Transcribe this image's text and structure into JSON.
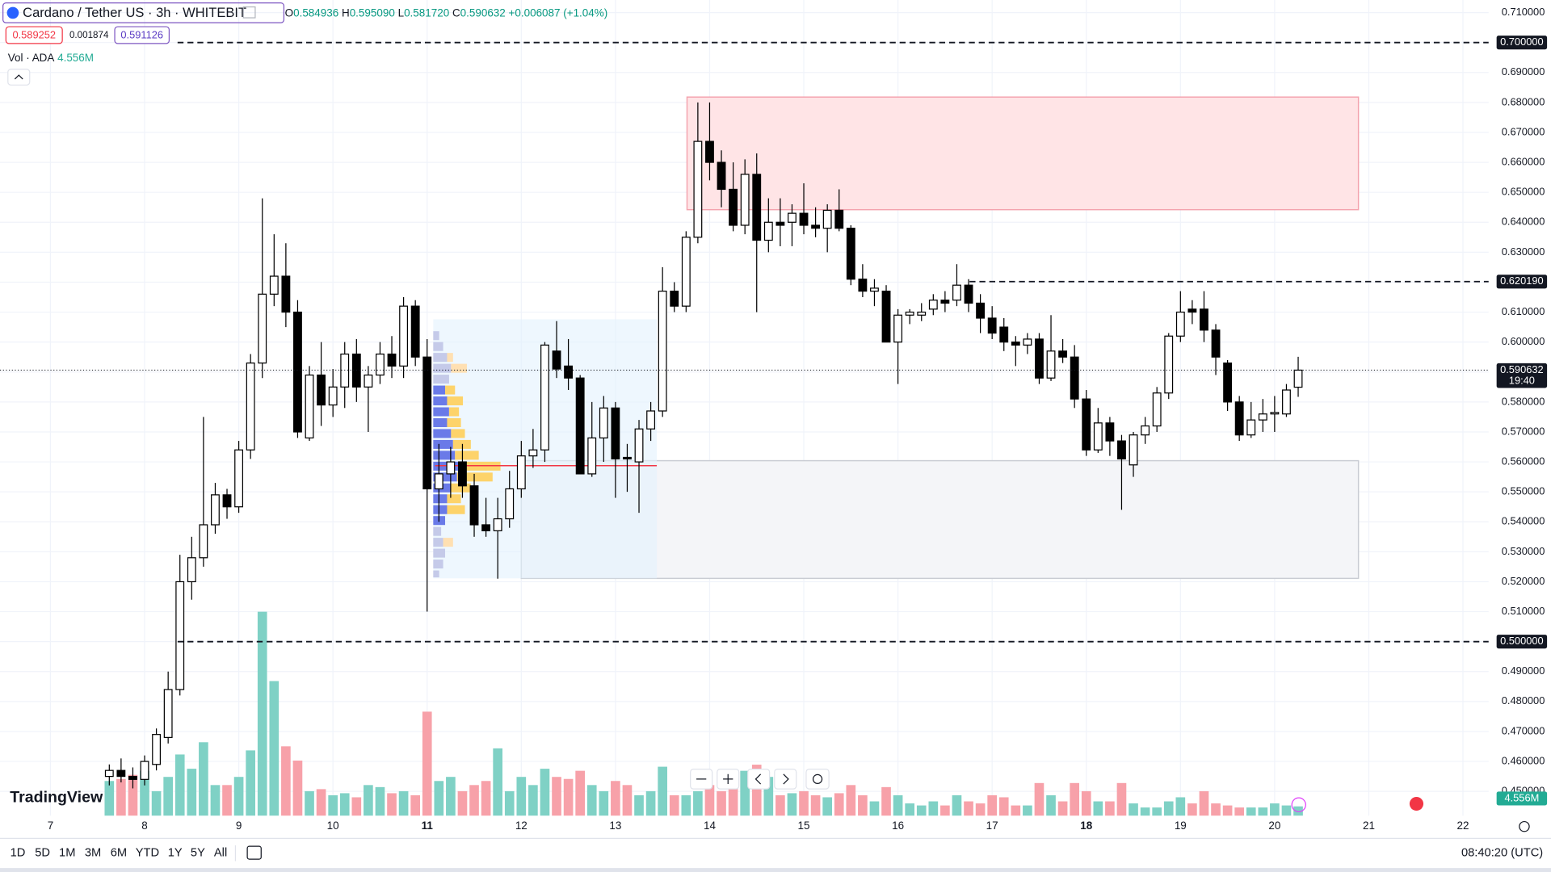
{
  "header": {
    "symbol": "Cardano / Tether US · 3h · WHITEBIT",
    "ohlc": [
      {
        "k": "O",
        "v": "0.584936"
      },
      {
        "k": "H",
        "v": "0.595090"
      },
      {
        "k": "L",
        "v": "0.581720"
      },
      {
        "k": "C",
        "v": "0.590632"
      }
    ],
    "change": "+0.006087 (+1.04%)",
    "sell": "0.589252",
    "spread": "0.001874",
    "buy": "0.591126",
    "volume_name": "Vol · ADA"
  },
  "toolbar": {
    "ranges": [
      "1D",
      "5D",
      "1M",
      "3M",
      "6M",
      "YTD",
      "1Y",
      "5Y",
      "All"
    ],
    "time": "08:40:20 (UTC)",
    "logo": "TradingView"
  },
  "chart_data": {
    "type": "candlestick",
    "grid": true,
    "up_color": "#ffffff",
    "down_color": "#000000",
    "wick_color": "#000000",
    "xlim": [
      6.4643,
      22.273
    ],
    "xticks": [
      7,
      8,
      9,
      10,
      11,
      12,
      13,
      14,
      15,
      16,
      17,
      18,
      19,
      20,
      21,
      22
    ],
    "bold_xticks": [
      11,
      18
    ],
    "ylim": [
      0.4419,
      0.7142
    ],
    "yticks": [
      {
        "value": 0.45,
        "label": "0.450000"
      },
      {
        "value": 0.46,
        "label": "0.460000"
      },
      {
        "value": 0.47,
        "label": "0.470000"
      },
      {
        "value": 0.48,
        "label": "0.480000"
      },
      {
        "value": 0.49,
        "label": "0.490000"
      },
      {
        "value": 0.5,
        "label": "0.500000"
      },
      {
        "value": 0.51,
        "label": "0.510000"
      },
      {
        "value": 0.52,
        "label": "0.520000"
      },
      {
        "value": 0.53,
        "label": "0.530000"
      },
      {
        "value": 0.54,
        "label": "0.540000"
      },
      {
        "value": 0.55,
        "label": "0.550000"
      },
      {
        "value": 0.56,
        "label": "0.560000"
      },
      {
        "value": 0.57,
        "label": "0.570000"
      },
      {
        "value": 0.58,
        "label": "0.580000"
      },
      {
        "value": 0.59,
        "label": "0.590000"
      },
      {
        "value": 0.6,
        "label": "0.600000"
      },
      {
        "value": 0.61,
        "label": "0.610000"
      },
      {
        "value": 0.62,
        "label": "0.620000"
      },
      {
        "value": 0.63,
        "label": "0.630000"
      },
      {
        "value": 0.64,
        "label": "0.640000"
      },
      {
        "value": 0.65,
        "label": "0.650000"
      },
      {
        "value": 0.66,
        "label": "0.660000"
      },
      {
        "value": 0.67,
        "label": "0.670000"
      },
      {
        "value": 0.68,
        "label": "0.680000"
      },
      {
        "value": 0.69,
        "label": "0.690000"
      },
      {
        "value": 0.7,
        "label": "0.700000"
      },
      {
        "value": 0.71,
        "label": "0.710000"
      }
    ],
    "y2lim": [
      0,
      400
    ],
    "x": [
      7.625,
      7.75,
      7.875,
      8,
      8.125,
      8.25,
      8.375,
      8.5,
      8.625,
      8.75,
      8.875,
      9,
      9.125,
      9.25,
      9.375,
      9.5,
      9.625,
      9.75,
      9.875,
      10,
      10.125,
      10.25,
      10.375,
      10.5,
      10.625,
      10.75,
      10.875,
      11,
      11.125,
      11.25,
      11.375,
      11.5,
      11.625,
      11.75,
      11.875,
      12,
      12.125,
      12.25,
      12.375,
      12.5,
      12.625,
      12.75,
      12.875,
      13,
      13.125,
      13.25,
      13.375,
      13.5,
      13.625,
      13.75,
      13.875,
      14,
      14.125,
      14.25,
      14.375,
      14.5,
      14.625,
      14.75,
      14.875,
      15,
      15.125,
      15.25,
      15.375,
      15.5,
      15.625,
      15.75,
      15.875,
      16,
      16.125,
      16.25,
      16.375,
      16.5,
      16.625,
      16.75,
      16.875,
      17,
      17.125,
      17.25,
      17.375,
      17.5,
      17.625,
      17.75,
      17.875,
      18,
      18.125,
      18.25,
      18.375,
      18.5,
      18.625,
      18.75,
      18.875,
      19,
      19.125,
      19.25,
      19.375,
      19.5,
      19.625,
      19.75,
      19.875,
      20,
      20.125,
      20.25
    ],
    "ohlc": [
      [
        0.455,
        0.459,
        0.452,
        0.457
      ],
      [
        0.457,
        0.461,
        0.453,
        0.455
      ],
      [
        0.455,
        0.458,
        0.451,
        0.454
      ],
      [
        0.454,
        0.462,
        0.452,
        0.46
      ],
      [
        0.459,
        0.471,
        0.457,
        0.469
      ],
      [
        0.468,
        0.49,
        0.466,
        0.484
      ],
      [
        0.484,
        0.529,
        0.482,
        0.52
      ],
      [
        0.52,
        0.535,
        0.514,
        0.528
      ],
      [
        0.528,
        0.575,
        0.525,
        0.539
      ],
      [
        0.539,
        0.553,
        0.536,
        0.549
      ],
      [
        0.549,
        0.551,
        0.541,
        0.545
      ],
      [
        0.545,
        0.567,
        0.543,
        0.564
      ],
      [
        0.564,
        0.596,
        0.561,
        0.593
      ],
      [
        0.593,
        0.648,
        0.588,
        0.616
      ],
      [
        0.616,
        0.636,
        0.612,
        0.622
      ],
      [
        0.622,
        0.633,
        0.605,
        0.61
      ],
      [
        0.61,
        0.614,
        0.568,
        0.57
      ],
      [
        0.568,
        0.592,
        0.567,
        0.589
      ],
      [
        0.589,
        0.6,
        0.572,
        0.579
      ],
      [
        0.579,
        0.591,
        0.575,
        0.585
      ],
      [
        0.585,
        0.6,
        0.578,
        0.596
      ],
      [
        0.596,
        0.601,
        0.58,
        0.585
      ],
      [
        0.585,
        0.592,
        0.57,
        0.589
      ],
      [
        0.589,
        0.6,
        0.586,
        0.596
      ],
      [
        0.596,
        0.602,
        0.588,
        0.592
      ],
      [
        0.592,
        0.615,
        0.588,
        0.612
      ],
      [
        0.612,
        0.614,
        0.592,
        0.595
      ],
      [
        0.595,
        0.601,
        0.51,
        0.551
      ],
      [
        0.551,
        0.566,
        0.54,
        0.556
      ],
      [
        0.556,
        0.565,
        0.548,
        0.56
      ],
      [
        0.56,
        0.566,
        0.548,
        0.552
      ],
      [
        0.552,
        0.556,
        0.535,
        0.539
      ],
      [
        0.539,
        0.548,
        0.535,
        0.537
      ],
      [
        0.537,
        0.548,
        0.521,
        0.541
      ],
      [
        0.541,
        0.557,
        0.538,
        0.551
      ],
      [
        0.551,
        0.567,
        0.548,
        0.562
      ],
      [
        0.562,
        0.571,
        0.558,
        0.564
      ],
      [
        0.564,
        0.6,
        0.56,
        0.599
      ],
      [
        0.597,
        0.607,
        0.588,
        0.591
      ],
      [
        0.592,
        0.601,
        0.584,
        0.588
      ],
      [
        0.588,
        0.589,
        0.556,
        0.556
      ],
      [
        0.556,
        0.58,
        0.555,
        0.568
      ],
      [
        0.568,
        0.582,
        0.56,
        0.578
      ],
      [
        0.578,
        0.58,
        0.548,
        0.561
      ],
      [
        0.5615,
        0.566,
        0.55,
        0.561
      ],
      [
        0.56,
        0.574,
        0.543,
        0.571
      ],
      [
        0.571,
        0.58,
        0.567,
        0.577
      ],
      [
        0.577,
        0.625,
        0.575,
        0.617
      ],
      [
        0.617,
        0.62,
        0.61,
        0.612
      ],
      [
        0.612,
        0.637,
        0.61,
        0.635
      ],
      [
        0.635,
        0.68,
        0.633,
        0.667
      ],
      [
        0.667,
        0.68,
        0.654,
        0.66
      ],
      [
        0.66,
        0.664,
        0.645,
        0.651
      ],
      [
        0.651,
        0.66,
        0.637,
        0.639
      ],
      [
        0.639,
        0.661,
        0.636,
        0.656
      ],
      [
        0.656,
        0.663,
        0.61,
        0.634
      ],
      [
        0.634,
        0.648,
        0.63,
        0.64
      ],
      [
        0.64,
        0.648,
        0.632,
        0.639
      ],
      [
        0.64,
        0.646,
        0.632,
        0.643
      ],
      [
        0.643,
        0.653,
        0.636,
        0.639
      ],
      [
        0.639,
        0.645,
        0.635,
        0.638
      ],
      [
        0.638,
        0.646,
        0.63,
        0.644
      ],
      [
        0.644,
        0.651,
        0.637,
        0.638
      ],
      [
        0.638,
        0.639,
        0.619,
        0.621
      ],
      [
        0.621,
        0.626,
        0.615,
        0.617
      ],
      [
        0.617,
        0.621,
        0.612,
        0.618
      ],
      [
        0.617,
        0.619,
        0.6,
        0.6
      ],
      [
        0.6,
        0.611,
        0.586,
        0.609
      ],
      [
        0.609,
        0.611,
        0.606,
        0.61
      ],
      [
        0.609,
        0.613,
        0.607,
        0.61
      ],
      [
        0.611,
        0.616,
        0.609,
        0.614
      ],
      [
        0.614,
        0.617,
        0.61,
        0.613
      ],
      [
        0.614,
        0.626,
        0.612,
        0.619
      ],
      [
        0.619,
        0.621,
        0.61,
        0.613
      ],
      [
        0.613,
        0.616,
        0.603,
        0.608
      ],
      [
        0.608,
        0.612,
        0.601,
        0.603
      ],
      [
        0.605,
        0.608,
        0.597,
        0.6
      ],
      [
        0.6,
        0.602,
        0.592,
        0.599
      ],
      [
        0.599,
        0.603,
        0.596,
        0.601
      ],
      [
        0.601,
        0.603,
        0.586,
        0.588
      ],
      [
        0.588,
        0.609,
        0.587,
        0.597
      ],
      [
        0.597,
        0.601,
        0.593,
        0.595
      ],
      [
        0.595,
        0.599,
        0.578,
        0.581
      ],
      [
        0.581,
        0.584,
        0.562,
        0.564
      ],
      [
        0.564,
        0.578,
        0.563,
        0.573
      ],
      [
        0.573,
        0.575,
        0.562,
        0.567
      ],
      [
        0.567,
        0.569,
        0.544,
        0.561
      ],
      [
        0.559,
        0.57,
        0.555,
        0.569
      ],
      [
        0.569,
        0.575,
        0.566,
        0.572
      ],
      [
        0.572,
        0.585,
        0.57,
        0.583
      ],
      [
        0.583,
        0.603,
        0.581,
        0.602
      ],
      [
        0.602,
        0.617,
        0.6,
        0.61
      ],
      [
        0.611,
        0.614,
        0.606,
        0.61
      ],
      [
        0.611,
        0.617,
        0.6,
        0.604
      ],
      [
        0.604,
        0.606,
        0.589,
        0.595
      ],
      [
        0.593,
        0.594,
        0.577,
        0.58
      ],
      [
        0.58,
        0.582,
        0.567,
        0.569
      ],
      [
        0.569,
        0.58,
        0.568,
        0.574
      ],
      [
        0.574,
        0.581,
        0.57,
        0.576
      ],
      [
        0.576,
        0.582,
        0.57,
        0.5765
      ],
      [
        0.576,
        0.586,
        0.575,
        0.584
      ],
      [
        0.584936,
        0.59509,
        0.58172,
        0.590632
      ]
    ],
    "volume": {
      "up_color": "#7fd1c5",
      "down_color": "#f7a1a9",
      "last_label": "4.556M",
      "values": [
        17,
        18,
        20,
        22,
        12,
        19,
        30,
        23,
        36,
        15,
        15,
        19,
        32,
        100,
        66,
        34,
        27,
        12,
        13,
        10,
        11,
        9,
        15,
        14,
        11,
        12,
        10,
        51,
        17,
        19,
        12,
        15,
        17,
        33,
        12,
        19,
        15,
        23,
        19,
        18,
        22,
        15,
        12,
        17,
        15,
        10,
        12,
        24,
        10,
        10,
        12,
        15,
        12,
        19,
        22,
        25,
        19,
        10,
        11,
        12,
        10,
        9,
        11,
        15,
        10,
        7,
        14,
        10,
        6,
        5,
        7,
        5,
        10,
        7,
        6,
        10,
        9,
        5,
        5,
        16,
        10,
        7,
        16,
        12,
        7,
        7,
        16,
        6,
        4,
        4,
        7,
        9,
        6,
        12,
        6,
        5,
        4,
        4,
        4,
        6,
        5,
        4.556
      ]
    },
    "price_label": "0.590632",
    "countdown": "19:40",
    "levels": [
      {
        "value": 0.7,
        "label": "0.700000",
        "from": 8.35
      },
      {
        "value": 0.62019,
        "label": "0.620190",
        "from": 16.76
      },
      {
        "value": 0.5,
        "label": "0.500000",
        "from": 8.35
      }
    ],
    "zones": [
      {
        "x": [
          13.76,
          20.89
        ],
        "y": [
          0.6442,
          0.6818
        ],
        "fill": "#ffe4e6",
        "stroke": "#f4a3ae"
      },
      {
        "x": [
          12.0,
          20.89
        ],
        "y": [
          0.5211,
          0.5604
        ],
        "fill": "#f4f5f8",
        "stroke": "#c9ccd3"
      }
    ]
  }
}
